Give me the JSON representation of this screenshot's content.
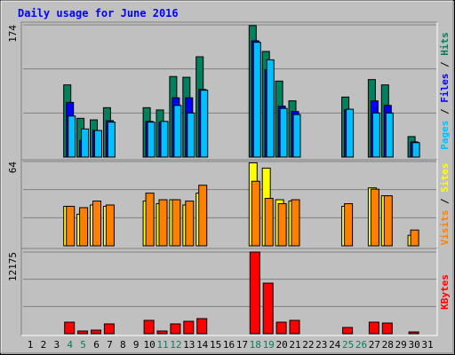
{
  "chart_data": [
    {
      "type": "bar",
      "title": "Daily usage for June 2016",
      "ylim": [
        0,
        174
      ],
      "yticks": [
        174
      ],
      "grid": true,
      "legend_separator": "/",
      "series": [
        {
          "name": "Hits",
          "color": "#00805c",
          "values": [
            0,
            0,
            0,
            95,
            51,
            49,
            65,
            0,
            0,
            65,
            62,
            106,
            105,
            132,
            0,
            0,
            0,
            173,
            139,
            100,
            74,
            0,
            0,
            0,
            79,
            0,
            102,
            95,
            0,
            27,
            0
          ]
        },
        {
          "name": "Files",
          "color": "#0000ff",
          "values": [
            0,
            0,
            0,
            72,
            22,
            35,
            48,
            0,
            0,
            47,
            46,
            78,
            78,
            89,
            0,
            0,
            0,
            153,
            115,
            67,
            60,
            0,
            0,
            0,
            62,
            0,
            74,
            68,
            0,
            20,
            0
          ]
        },
        {
          "name": "Pages",
          "color": "#00c0ff",
          "values": [
            0,
            0,
            0,
            54,
            37,
            35,
            46,
            0,
            0,
            46,
            47,
            68,
            58,
            88,
            0,
            0,
            0,
            151,
            128,
            64,
            56,
            0,
            0,
            0,
            63,
            0,
            58,
            58,
            0,
            19,
            0
          ]
        }
      ]
    },
    {
      "type": "bar",
      "ylim": [
        0,
        64
      ],
      "yticks": [
        64
      ],
      "grid": true,
      "legend_separator": "/",
      "series": [
        {
          "name": "Sites",
          "color": "#ffff00",
          "values": [
            0,
            0,
            0,
            30,
            24,
            31,
            30,
            0,
            0,
            34,
            32,
            35,
            31,
            40,
            0,
            0,
            0,
            63,
            59,
            35,
            34,
            0,
            0,
            0,
            30,
            0,
            44,
            38,
            0,
            8,
            0
          ]
        },
        {
          "name": "Visits",
          "color": "#ff8000",
          "values": [
            0,
            0,
            0,
            30,
            29,
            34,
            31,
            0,
            0,
            40,
            35,
            35,
            34,
            46,
            0,
            0,
            0,
            49,
            36,
            32,
            35,
            0,
            0,
            0,
            32,
            0,
            43,
            38,
            0,
            12,
            0
          ]
        }
      ]
    },
    {
      "type": "bar",
      "ylim": [
        0,
        12175
      ],
      "yticks": [
        12175
      ],
      "grid": true,
      "categories": [
        "1",
        "2",
        "3",
        "4",
        "5",
        "6",
        "7",
        "8",
        "9",
        "10",
        "11",
        "12",
        "13",
        "14",
        "15",
        "16",
        "17",
        "18",
        "19",
        "20",
        "21",
        "22",
        "23",
        "24",
        "25",
        "26",
        "27",
        "28",
        "29",
        "30",
        "31"
      ],
      "category_colors": [
        "#000000",
        "#000000",
        "#000000",
        "#00805c",
        "#00805c",
        "#000000",
        "#000000",
        "#000000",
        "#000000",
        "#000000",
        "#00805c",
        "#00805c",
        "#000000",
        "#000000",
        "#000000",
        "#000000",
        "#000000",
        "#00805c",
        "#00805c",
        "#000000",
        "#000000",
        "#000000",
        "#000000",
        "#000000",
        "#00805c",
        "#00805c",
        "#000000",
        "#000000",
        "#000000",
        "#000000",
        "#000000"
      ],
      "series": [
        {
          "name": "KBytes",
          "color": "#ff0000",
          "values": [
            0,
            0,
            0,
            1720,
            400,
            530,
            1460,
            0,
            0,
            1990,
            400,
            1460,
            1850,
            2250,
            0,
            0,
            0,
            12175,
            7540,
            1720,
            1990,
            0,
            0,
            0,
            930,
            0,
            1720,
            1590,
            0,
            265,
            0
          ]
        }
      ]
    }
  ]
}
